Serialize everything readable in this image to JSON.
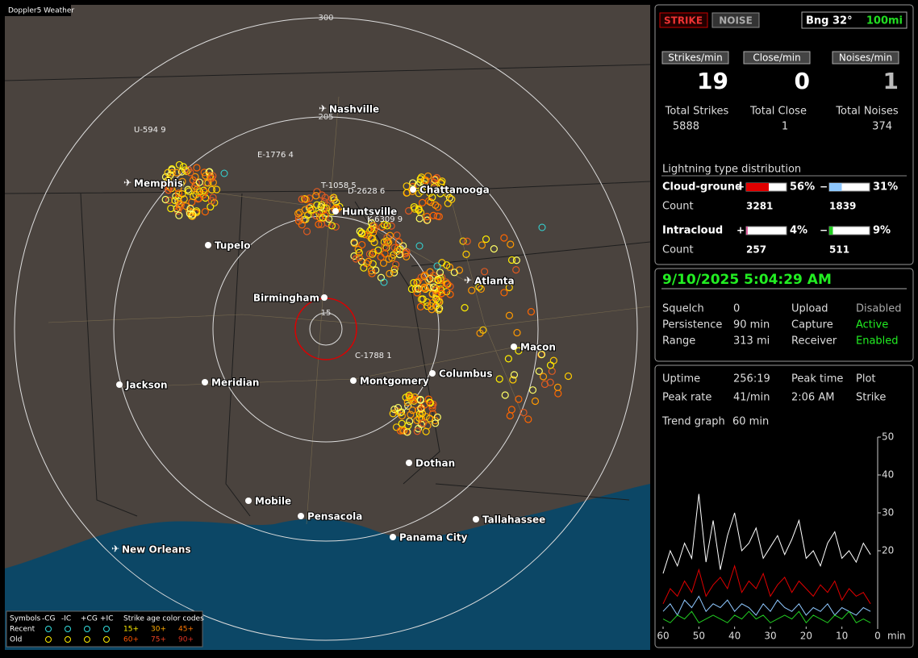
{
  "map": {
    "title": "Doppler5 Weather",
    "range_labels": [
      300,
      205,
      15
    ],
    "cities": [
      "Nashville",
      "Memphis",
      "Chattanooga",
      "Huntsville",
      "Tupelo",
      "Atlanta",
      "Birmingham",
      "Macon",
      "Jackson",
      "Meridian",
      "Montgomery",
      "Columbus",
      "Dothan",
      "Mobile",
      "Pensacola",
      "Tallahassee",
      "Panama City",
      "New Orleans"
    ],
    "storm_tags": [
      "U-594 9",
      "E-1776 4",
      "T-1058 5",
      "D-2628 6",
      "K-6309 9",
      "C-1788 1"
    ],
    "legend": {
      "symbols": "Symbols",
      "types": [
        "-CG",
        "-IC",
        "+CG",
        "+IC"
      ],
      "age_title": "Strike age color codes",
      "rows": [
        "Recent",
        "Old"
      ],
      "ages": [
        "15+",
        "30+",
        "45+",
        "60+",
        "75+",
        "90+"
      ]
    }
  },
  "panel": {
    "mode_buttons": [
      "STRIKE",
      "NOISE"
    ],
    "bearing": "Bng 32°",
    "range": "100mi",
    "rates": [
      {
        "label": "Strikes/min",
        "value": 19
      },
      {
        "label": "Close/min",
        "value": 0
      },
      {
        "label": "Noises/min",
        "value": 1
      }
    ],
    "totals": [
      {
        "label": "Total Strikes",
        "value": 5888
      },
      {
        "label": "Total Close",
        "value": 1
      },
      {
        "label": "Total Noises",
        "value": 374
      }
    ],
    "distribution": {
      "title": "Lightning type distribution",
      "signs": [
        "+",
        "−"
      ],
      "count_label": "Count",
      "rows": [
        {
          "label": "Cloud-ground",
          "pos": {
            "value": 56,
            "label": "56%"
          },
          "neg": {
            "value": 31,
            "label": "31%"
          },
          "pos_count": 3281,
          "neg_count": 1839
        },
        {
          "label": "Intracloud",
          "pos": {
            "value": 4,
            "label": "4%"
          },
          "neg": {
            "value": 9,
            "label": "9%"
          },
          "pos_count": 257,
          "neg_count": 511
        }
      ]
    },
    "status": {
      "datetime": "9/10/2025 5:04:29 AM",
      "items": [
        {
          "label": "Squelch",
          "value": 0
        },
        {
          "label": "Persistence",
          "value": "90 min"
        },
        {
          "label": "Range",
          "value": "313 mi"
        },
        {
          "label": "Upload",
          "value": "Disabled"
        },
        {
          "label": "Capture",
          "value": "Active"
        },
        {
          "label": "Receiver",
          "value": "Enabled"
        }
      ]
    },
    "stats": [
      {
        "label": "Uptime",
        "value": "256:19"
      },
      {
        "label": "Peak time",
        "value": "2:06 AM"
      },
      {
        "label": "Plot",
        "value": "Strike"
      },
      {
        "label": "Peak rate",
        "value": "41/min"
      }
    ],
    "trend": {
      "label": "Trend graph",
      "window": "60 min"
    },
    "trend_chart": {
      "type": "line",
      "x_label": "min",
      "xlim": [
        60,
        0
      ],
      "xticks": [
        60,
        50,
        40,
        30,
        20,
        10,
        0
      ],
      "ylim": [
        0,
        50
      ],
      "yticks": [
        20,
        30,
        40,
        50
      ],
      "x": [
        60,
        58,
        56,
        54,
        52,
        50,
        48,
        46,
        44,
        42,
        40,
        38,
        36,
        34,
        32,
        30,
        28,
        26,
        24,
        22,
        20,
        18,
        16,
        14,
        12,
        10,
        8,
        6,
        4,
        2
      ],
      "series": [
        {
          "color": "#ffffff",
          "values": [
            14,
            20,
            16,
            22,
            18,
            35,
            17,
            28,
            15,
            24,
            30,
            20,
            22,
            26,
            18,
            21,
            24,
            19,
            23,
            28,
            18,
            20,
            16,
            22,
            25,
            18,
            20,
            17,
            22,
            19
          ]
        },
        {
          "color": "#e00000",
          "values": [
            6,
            10,
            8,
            12,
            9,
            15,
            8,
            11,
            13,
            10,
            16,
            9,
            12,
            10,
            14,
            8,
            11,
            13,
            9,
            12,
            10,
            8,
            11,
            9,
            12,
            7,
            10,
            8,
            9,
            6
          ]
        },
        {
          "color": "#8fc8ff",
          "values": [
            4,
            6,
            3,
            7,
            5,
            8,
            4,
            6,
            5,
            7,
            4,
            6,
            5,
            3,
            6,
            4,
            7,
            5,
            4,
            6,
            3,
            5,
            4,
            6,
            3,
            5,
            4,
            3,
            5,
            4
          ]
        },
        {
          "color": "#22cc22",
          "values": [
            2,
            1,
            3,
            2,
            4,
            1,
            2,
            3,
            2,
            1,
            3,
            2,
            4,
            2,
            3,
            1,
            2,
            3,
            2,
            4,
            1,
            3,
            2,
            1,
            3,
            2,
            4,
            1,
            2,
            1
          ]
        }
      ]
    }
  }
}
